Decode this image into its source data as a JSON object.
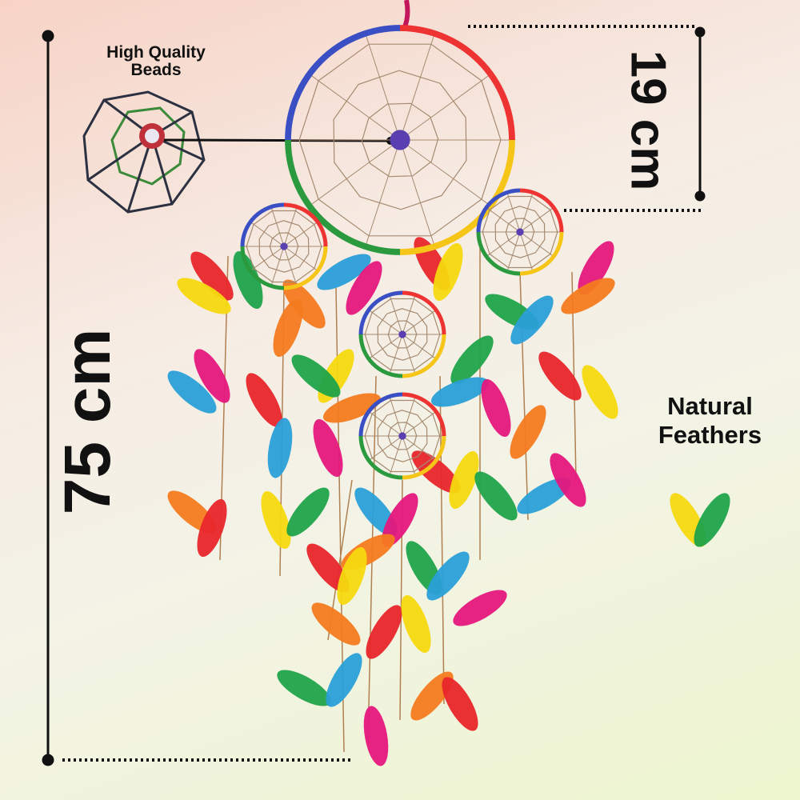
{
  "labels": {
    "beads": "High Quality Beads",
    "feathers": "Natural Feathers",
    "length": "75 cm",
    "diameter": "19 cm"
  },
  "colors": {
    "feathers": [
      "#e8262b",
      "#f5d90f",
      "#1fa34a",
      "#2a9fd8",
      "#e5177d",
      "#f47a1f"
    ],
    "ring": [
      "#e33",
      "#f5c518",
      "#2b9a3f",
      "#3b4fc4"
    ]
  }
}
